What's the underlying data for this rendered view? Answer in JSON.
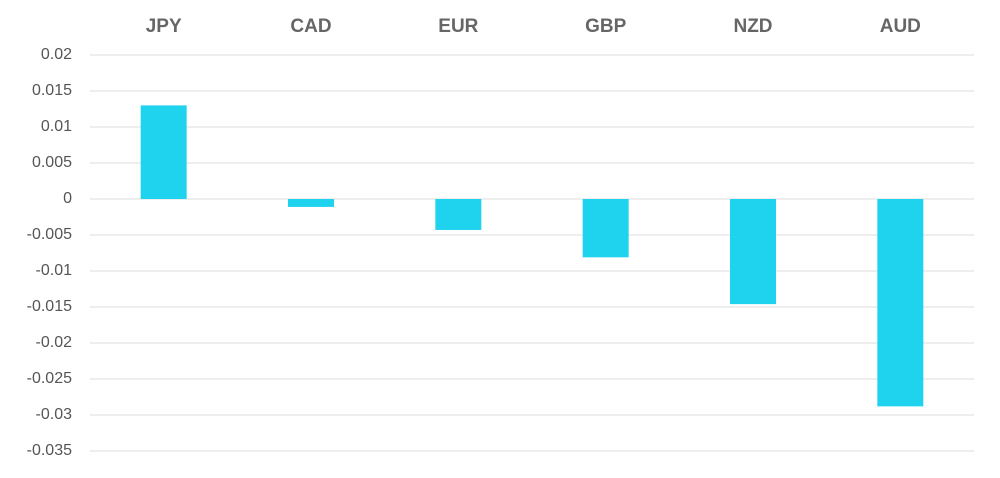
{
  "chart_data": {
    "type": "bar",
    "categories": [
      "JPY",
      "CAD",
      "EUR",
      "GBP",
      "NZD",
      "AUD"
    ],
    "values": [
      0.013,
      -0.0011,
      -0.0043,
      -0.0081,
      -0.0146,
      -0.0288
    ],
    "color": "#1fd3ee",
    "ylim": [
      -0.035,
      0.02
    ],
    "yticks": [
      0.02,
      0.015,
      0.01,
      0.005,
      0,
      -0.005,
      -0.01,
      -0.015,
      -0.02,
      -0.025,
      -0.03,
      -0.035
    ],
    "grid": true
  }
}
